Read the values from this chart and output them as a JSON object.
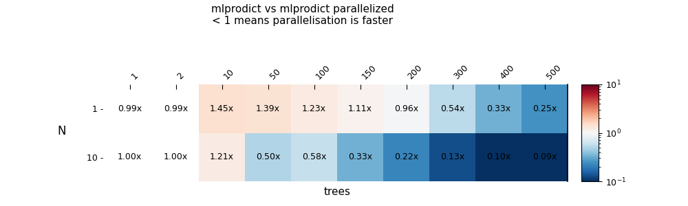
{
  "title_line1": "mlprodict vs mlprodict parallelized",
  "title_line2": "< 1 means parallelisation is faster",
  "xlabel": "trees",
  "ylabel": "N",
  "x_labels": [
    "1",
    "2",
    "10",
    "50",
    "100",
    "150",
    "200",
    "300",
    "400",
    "500"
  ],
  "y_labels": [
    "1",
    "10"
  ],
  "values": [
    [
      0.99,
      0.99,
      1.45,
      1.39,
      1.23,
      1.11,
      0.96,
      0.54,
      0.33,
      0.25
    ],
    [
      1.0,
      1.0,
      1.21,
      0.5,
      0.58,
      0.33,
      0.22,
      0.13,
      0.1,
      0.09
    ]
  ],
  "cell_texts": [
    [
      "0.99x",
      "0.99x",
      "1.45x",
      "1.39x",
      "1.23x",
      "1.11x",
      "0.96x",
      "0.54x",
      "0.33x",
      "0.25x"
    ],
    [
      "1.00x",
      "1.00x",
      "1.21x",
      "0.50x",
      "0.58x",
      "0.33x",
      "0.22x",
      "0.13x",
      "0.10x",
      "0.09x"
    ]
  ],
  "no_color_cols": [
    0,
    1
  ],
  "vmin": 0.1,
  "vmax": 10.0,
  "colormap": "RdBu_r",
  "background_color": "#ffffff",
  "colorbar_ticks": [
    0.1,
    1.0,
    10.0
  ],
  "colorbar_ticklabels": [
    "$10^{-1}$",
    "$10^{0}$",
    "$10^{1}$"
  ]
}
